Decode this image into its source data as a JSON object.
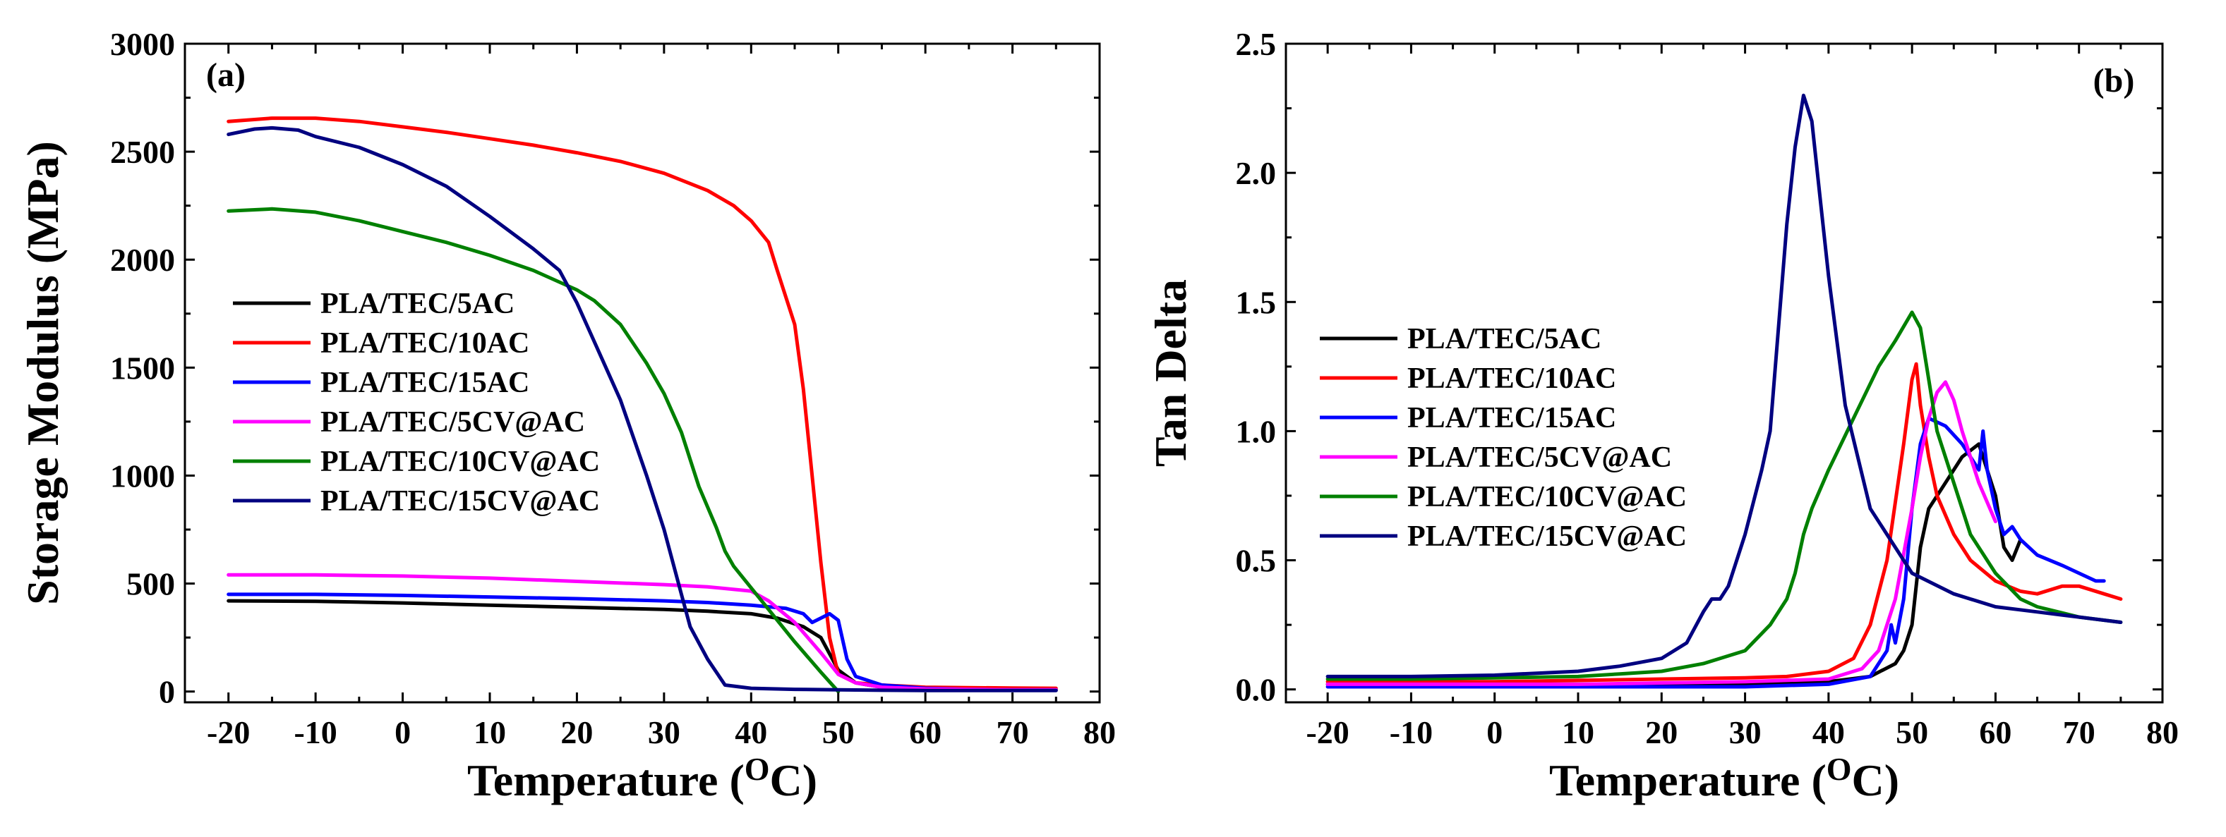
{
  "chart_data": [
    {
      "type": "line",
      "panel_label": "(a)",
      "xlabel": "Temperature (",
      "xlabel_sup": "O",
      "xlabel_end": "C)",
      "ylabel": "Storage Modulus (MPa)",
      "xlim": [
        -25,
        80
      ],
      "ylim": [
        -50,
        3000
      ],
      "xticks": [
        -20,
        -10,
        0,
        10,
        20,
        30,
        40,
        50,
        60,
        70,
        80
      ],
      "yticks": [
        0,
        500,
        1000,
        1500,
        2000,
        2500,
        3000
      ],
      "legend_position": "middle-left",
      "series": [
        {
          "name": "PLA/TEC/5AC",
          "color": "#000000",
          "x": [
            -20,
            -10,
            0,
            10,
            20,
            30,
            35,
            40,
            43,
            46,
            48,
            50,
            52,
            55,
            60,
            65,
            70,
            75
          ],
          "y": [
            420,
            418,
            410,
            400,
            390,
            380,
            372,
            360,
            340,
            300,
            250,
            100,
            40,
            20,
            12,
            10,
            8,
            8
          ]
        },
        {
          "name": "PLA/TEC/10AC",
          "color": "#ff0000",
          "x": [
            -20,
            -15,
            -10,
            -5,
            0,
            5,
            10,
            15,
            20,
            25,
            30,
            35,
            38,
            40,
            42,
            43,
            45,
            46,
            47,
            48,
            49,
            50,
            52,
            55,
            60,
            65,
            70,
            75
          ],
          "y": [
            2640,
            2655,
            2655,
            2640,
            2615,
            2590,
            2560,
            2530,
            2495,
            2455,
            2400,
            2320,
            2250,
            2180,
            2080,
            1950,
            1700,
            1400,
            1000,
            600,
            250,
            80,
            40,
            30,
            20,
            18,
            16,
            15
          ]
        },
        {
          "name": "PLA/TEC/15AC",
          "color": "#0000ff",
          "x": [
            -20,
            -10,
            0,
            10,
            20,
            30,
            35,
            40,
            44,
            46,
            47,
            48,
            49,
            50,
            51,
            52,
            55,
            60,
            65,
            70,
            75
          ],
          "y": [
            450,
            450,
            445,
            438,
            430,
            420,
            412,
            400,
            385,
            360,
            320,
            340,
            360,
            330,
            150,
            70,
            30,
            15,
            10,
            8,
            8
          ]
        },
        {
          "name": "PLA/TEC/5CV@AC",
          "color": "#ff00ff",
          "x": [
            -20,
            -10,
            0,
            10,
            20,
            30,
            35,
            40,
            42,
            45,
            48,
            50,
            52,
            55,
            60,
            65,
            70,
            75
          ],
          "y": [
            540,
            540,
            535,
            525,
            510,
            495,
            485,
            465,
            420,
            320,
            180,
            80,
            40,
            20,
            12,
            10,
            8,
            8
          ]
        },
        {
          "name": "PLA/TEC/10CV@AC",
          "color": "#008000",
          "x": [
            -20,
            -15,
            -10,
            -5,
            0,
            5,
            10,
            15,
            20,
            22,
            25,
            28,
            30,
            32,
            34,
            36,
            37,
            38,
            40,
            42,
            45,
            48,
            50
          ],
          "y": [
            2225,
            2235,
            2220,
            2180,
            2130,
            2080,
            2020,
            1950,
            1860,
            1810,
            1700,
            1520,
            1380,
            1200,
            950,
            760,
            650,
            580,
            480,
            380,
            230,
            90,
            0
          ]
        },
        {
          "name": "PLA/TEC/15CV@AC",
          "color": "#000080",
          "x": [
            -20,
            -17,
            -15,
            -12,
            -10,
            -5,
            0,
            5,
            10,
            15,
            18,
            20,
            22,
            25,
            28,
            30,
            32,
            33,
            35,
            37,
            40,
            45,
            50,
            55,
            60,
            65,
            70,
            75
          ],
          "y": [
            2580,
            2605,
            2610,
            2600,
            2570,
            2520,
            2440,
            2340,
            2200,
            2050,
            1950,
            1800,
            1620,
            1350,
            1000,
            750,
            450,
            300,
            150,
            30,
            15,
            10,
            8,
            6,
            5,
            5,
            5,
            5
          ]
        }
      ]
    },
    {
      "type": "line",
      "panel_label": "(b)",
      "xlabel": "Temperature (",
      "xlabel_sup": "O",
      "xlabel_end": "C)",
      "ylabel": "Tan Delta",
      "xlim": [
        -25,
        80
      ],
      "ylim": [
        -0.05,
        2.5
      ],
      "xticks": [
        -20,
        -10,
        0,
        10,
        20,
        30,
        40,
        50,
        60,
        70,
        80
      ],
      "yticks": [
        0.0,
        0.5,
        1.0,
        1.5,
        2.0,
        2.5
      ],
      "yticklabels": [
        "0.0",
        "0.5",
        "1.0",
        "1.5",
        "2.0",
        "2.5"
      ],
      "legend_position": "middle-left",
      "series": [
        {
          "name": "PLA/TEC/5AC",
          "color": "#000000",
          "x": [
            -20,
            -10,
            0,
            10,
            20,
            30,
            40,
            45,
            48,
            49,
            50,
            51,
            52,
            54,
            56,
            58,
            60,
            61,
            62,
            63
          ],
          "y": [
            0.02,
            0.02,
            0.02,
            0.02,
            0.02,
            0.02,
            0.03,
            0.05,
            0.1,
            0.15,
            0.25,
            0.55,
            0.7,
            0.8,
            0.9,
            0.95,
            0.75,
            0.55,
            0.5,
            0.58
          ]
        },
        {
          "name": "PLA/TEC/10AC",
          "color": "#ff0000",
          "x": [
            -20,
            -10,
            0,
            10,
            20,
            30,
            35,
            40,
            43,
            45,
            47,
            49,
            50,
            50.5,
            51,
            52,
            53,
            55,
            57,
            60,
            63,
            65,
            68,
            70,
            73,
            75
          ],
          "y": [
            0.03,
            0.03,
            0.03,
            0.035,
            0.04,
            0.045,
            0.05,
            0.07,
            0.12,
            0.25,
            0.5,
            0.95,
            1.2,
            1.26,
            1.1,
            0.9,
            0.75,
            0.6,
            0.5,
            0.42,
            0.38,
            0.37,
            0.4,
            0.4,
            0.37,
            0.35
          ]
        },
        {
          "name": "PLA/TEC/15AC",
          "color": "#0000ff",
          "x": [
            -20,
            -10,
            0,
            10,
            20,
            30,
            40,
            45,
            47,
            47.5,
            48,
            49,
            50,
            51,
            52,
            54,
            56,
            57,
            58,
            58.5,
            59,
            60,
            61,
            62,
            63,
            65,
            68,
            70,
            72,
            73
          ],
          "y": [
            0.01,
            0.01,
            0.01,
            0.01,
            0.01,
            0.01,
            0.02,
            0.05,
            0.15,
            0.25,
            0.18,
            0.35,
            0.7,
            0.95,
            1.05,
            1.02,
            0.95,
            0.9,
            0.85,
            1.0,
            0.85,
            0.7,
            0.6,
            0.63,
            0.58,
            0.52,
            0.48,
            0.45,
            0.42,
            0.42
          ]
        },
        {
          "name": "PLA/TEC/5CV@AC",
          "color": "#ff00ff",
          "x": [
            -20,
            -10,
            0,
            10,
            20,
            30,
            40,
            44,
            46,
            48,
            50,
            51,
            52,
            53,
            54,
            55,
            56,
            58,
            60
          ],
          "y": [
            0.02,
            0.02,
            0.02,
            0.02,
            0.025,
            0.03,
            0.04,
            0.08,
            0.15,
            0.35,
            0.7,
            0.9,
            1.05,
            1.15,
            1.19,
            1.12,
            1.0,
            0.8,
            0.65
          ]
        },
        {
          "name": "PLA/TEC/10CV@AC",
          "color": "#008000",
          "x": [
            -20,
            -10,
            0,
            10,
            15,
            20,
            25,
            30,
            33,
            35,
            36,
            37,
            38,
            40,
            43,
            46,
            48,
            50,
            51,
            53,
            55,
            57,
            60,
            63,
            65,
            70,
            75
          ],
          "y": [
            0.04,
            0.04,
            0.045,
            0.05,
            0.06,
            0.07,
            0.1,
            0.15,
            0.25,
            0.35,
            0.45,
            0.6,
            0.7,
            0.85,
            1.05,
            1.25,
            1.35,
            1.46,
            1.4,
            1.0,
            0.8,
            0.6,
            0.45,
            0.35,
            0.32,
            0.28,
            0.26
          ]
        },
        {
          "name": "PLA/TEC/15CV@AC",
          "color": "#000080",
          "x": [
            -20,
            -10,
            0,
            10,
            15,
            20,
            23,
            25,
            26,
            27,
            28,
            30,
            32,
            33,
            34,
            35,
            36,
            37,
            38,
            39,
            40,
            42,
            45,
            50,
            55,
            60,
            65,
            70,
            75
          ],
          "y": [
            0.05,
            0.05,
            0.055,
            0.07,
            0.09,
            0.12,
            0.18,
            0.3,
            0.35,
            0.35,
            0.4,
            0.6,
            0.85,
            1.0,
            1.4,
            1.8,
            2.1,
            2.3,
            2.2,
            1.9,
            1.6,
            1.1,
            0.7,
            0.45,
            0.37,
            0.32,
            0.3,
            0.28,
            0.26
          ]
        }
      ]
    }
  ]
}
